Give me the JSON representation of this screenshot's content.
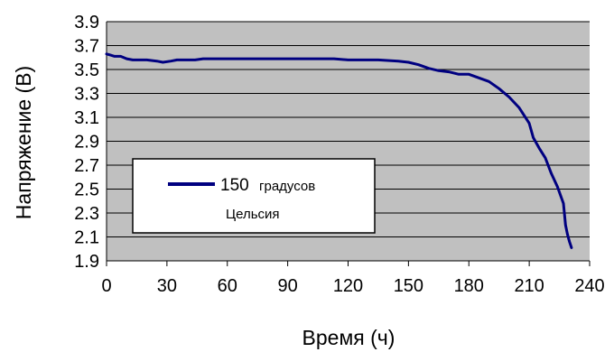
{
  "chart_data": {
    "type": "line",
    "xlabel": "Время (ч)",
    "ylabel": "Напряжение (В)",
    "xlim": [
      0,
      240
    ],
    "ylim": [
      1.9,
      3.9
    ],
    "xticks": [
      0,
      30,
      60,
      90,
      120,
      150,
      180,
      210,
      240
    ],
    "yticks": [
      "1.9",
      "2.1",
      "2.3",
      "2.5",
      "2.7",
      "2.9",
      "3.1",
      "3.3",
      "3.5",
      "3.7",
      "3.9"
    ],
    "grid": "horizontal",
    "plot_background": "#c0c0c0",
    "legend": {
      "placement": "center-left",
      "entries": [
        {
          "number": "150",
          "unit_line1": "градусов",
          "unit_line2": "Цельсия"
        }
      ]
    },
    "series": [
      {
        "color": "#000080",
        "points": [
          [
            0,
            3.63
          ],
          [
            2,
            3.62
          ],
          [
            4,
            3.61
          ],
          [
            7,
            3.61
          ],
          [
            10,
            3.59
          ],
          [
            13,
            3.58
          ],
          [
            20,
            3.58
          ],
          [
            25,
            3.57
          ],
          [
            28,
            3.56
          ],
          [
            32,
            3.57
          ],
          [
            35,
            3.58
          ],
          [
            44,
            3.58
          ],
          [
            48,
            3.59
          ],
          [
            60,
            3.59
          ],
          [
            80,
            3.59
          ],
          [
            100,
            3.59
          ],
          [
            113,
            3.59
          ],
          [
            120,
            3.58
          ],
          [
            125,
            3.58
          ],
          [
            135,
            3.58
          ],
          [
            145,
            3.57
          ],
          [
            150,
            3.56
          ],
          [
            155,
            3.54
          ],
          [
            160,
            3.51
          ],
          [
            165,
            3.49
          ],
          [
            170,
            3.48
          ],
          [
            175,
            3.46
          ],
          [
            180,
            3.46
          ],
          [
            185,
            3.43
          ],
          [
            190,
            3.4
          ],
          [
            195,
            3.34
          ],
          [
            200,
            3.27
          ],
          [
            205,
            3.18
          ],
          [
            210,
            3.05
          ],
          [
            212,
            2.93
          ],
          [
            215,
            2.84
          ],
          [
            218,
            2.76
          ],
          [
            221,
            2.63
          ],
          [
            224,
            2.52
          ],
          [
            227,
            2.38
          ],
          [
            228,
            2.2
          ],
          [
            229,
            2.12
          ],
          [
            230,
            2.06
          ],
          [
            231,
            2.01
          ]
        ]
      }
    ]
  }
}
